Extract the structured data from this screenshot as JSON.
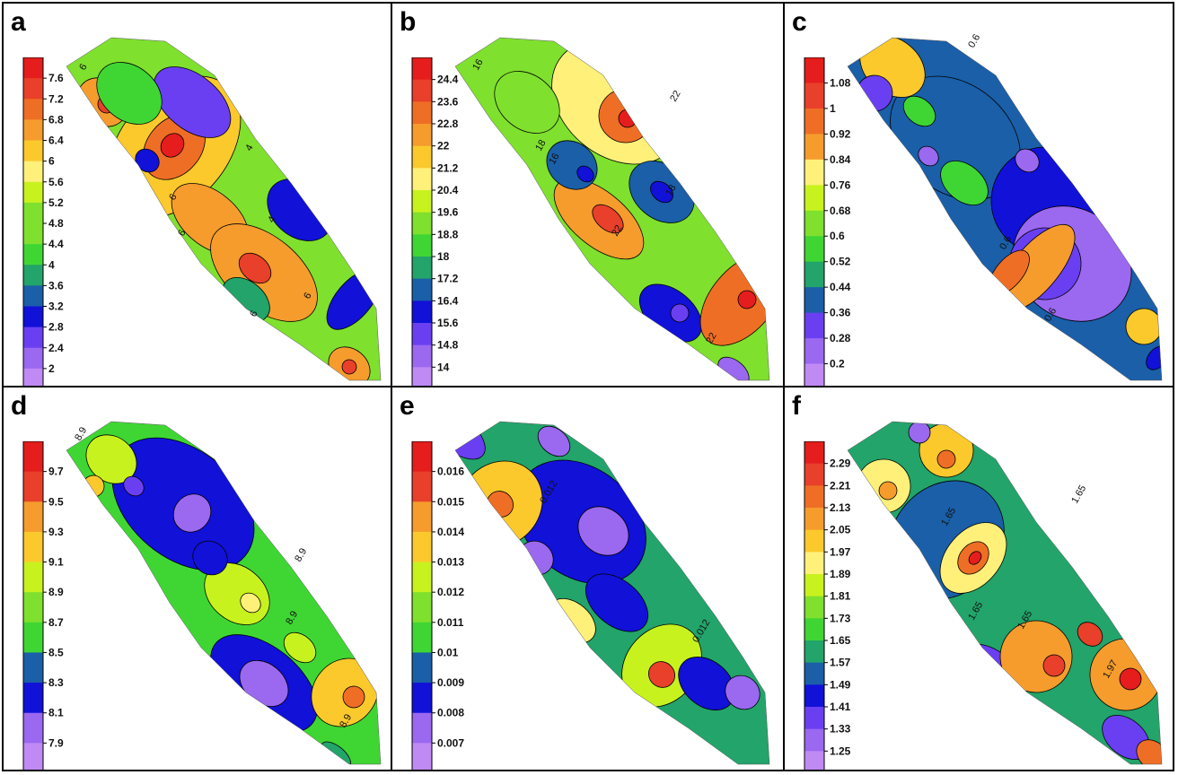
{
  "palette": [
    "#c08af5",
    "#9b68f0",
    "#6a3ff2",
    "#1111d8",
    "#1a5fa8",
    "#22a46a",
    "#3fd634",
    "#7fe02e",
    "#c8f21e",
    "#fff07a",
    "#fbc92c",
    "#f59c2d",
    "#ef6e25",
    "#e8402a",
    "#e51d1d"
  ],
  "panels": [
    {
      "letter": "a",
      "legend_values": [
        "7.6",
        "7.2",
        "6.8",
        "6.4",
        "6",
        "5.6",
        "5.2",
        "4.8",
        "4.4",
        "4",
        "3.6",
        "3.2",
        "2.8",
        "2.4",
        "2"
      ],
      "contour_labels": [
        "6",
        "6",
        "4",
        "4",
        "6",
        "6",
        "6"
      ]
    },
    {
      "letter": "b",
      "legend_values": [
        "24.4",
        "23.6",
        "22.8",
        "22",
        "21.2",
        "20.4",
        "19.6",
        "18.8",
        "18",
        "17.2",
        "16.4",
        "15.6",
        "14.8",
        "14"
      ],
      "contour_labels": [
        "16",
        "22",
        "18",
        "18",
        "16",
        "22",
        "22"
      ]
    },
    {
      "letter": "c",
      "legend_values": [
        "1.08",
        "1",
        "0.92",
        "0.84",
        "0.76",
        "0.68",
        "0.6",
        "0.52",
        "0.44",
        "0.36",
        "0.28",
        "0.2"
      ],
      "contour_labels": [
        "0.6",
        "0.6",
        "0.6"
      ]
    },
    {
      "letter": "d",
      "legend_values": [
        "9.7",
        "9.5",
        "9.3",
        "9.1",
        "8.9",
        "8.7",
        "8.5",
        "8.3",
        "8.1",
        "7.9"
      ],
      "contour_labels": [
        "8.9",
        "8.9",
        "8.9",
        "8.9"
      ]
    },
    {
      "letter": "e",
      "legend_values": [
        "0.016",
        "0.015",
        "0.014",
        "0.013",
        "0.012",
        "0.011",
        "0.01",
        "0.009",
        "0.008",
        "0.007"
      ],
      "contour_labels": [
        "0.012",
        "0.012"
      ]
    },
    {
      "letter": "f",
      "legend_values": [
        "2.29",
        "2.21",
        "2.13",
        "2.05",
        "1.97",
        "1.89",
        "1.81",
        "1.73",
        "1.65",
        "1.57",
        "1.49",
        "1.41",
        "1.33",
        "1.25"
      ],
      "contour_labels": [
        "1.65",
        "1.65",
        "1.65",
        "1.65",
        "1.97"
      ]
    }
  ]
}
